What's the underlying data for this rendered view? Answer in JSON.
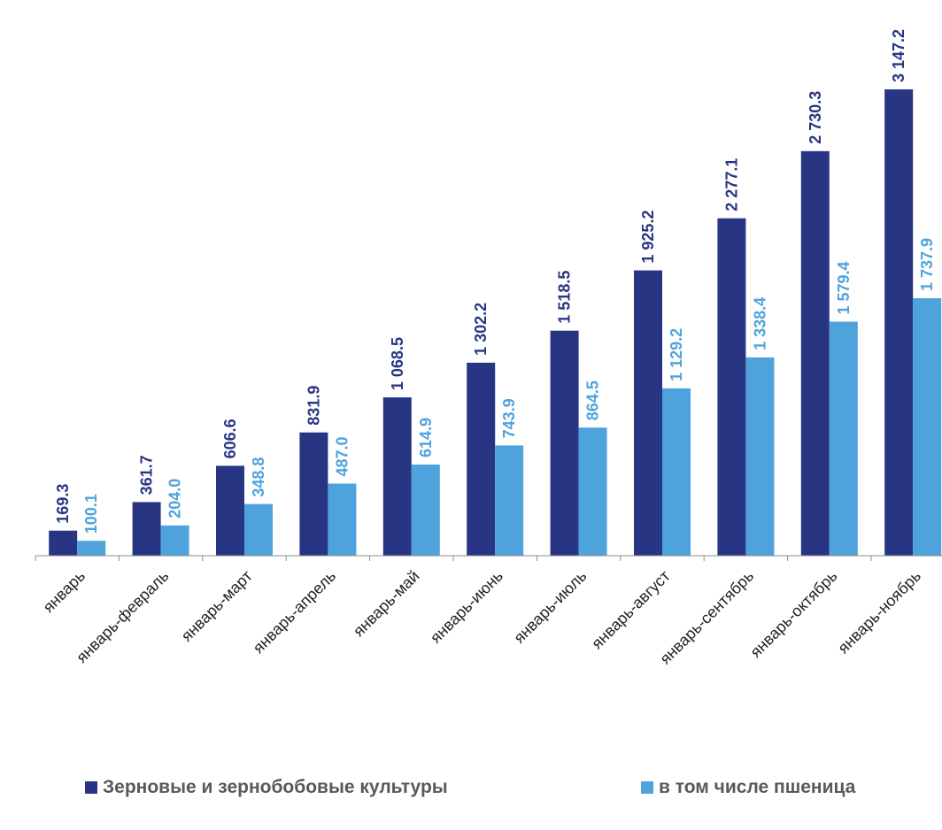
{
  "chart_data": {
    "type": "bar",
    "title": "",
    "xlabel": "",
    "ylabel": "",
    "ylim": [
      0,
      3150
    ],
    "grid": false,
    "legend_position": "bottom",
    "categories": [
      "январь",
      "январь-февраль",
      "январь-март",
      "январь-апрель",
      "январь-май",
      "январь-июнь",
      "январь-июль",
      "январь-август",
      "январь-сентябрь",
      "январь-октябрь",
      "январь-ноябрь"
    ],
    "series": [
      {
        "name": "Зерновые и зернобобовые культуры",
        "color": "#283583",
        "values": [
          169.3,
          361.7,
          606.6,
          831.9,
          1068.5,
          1302.2,
          1518.5,
          1925.2,
          2277.1,
          2730.3,
          3147.2
        ],
        "labels": [
          "169.3",
          "361.7",
          "606.6",
          "831.9",
          "1 068.5",
          "1 302.2",
          "1 518.5",
          "1 925.2",
          "2 277.1",
          "2 730.3",
          "3 147.2"
        ]
      },
      {
        "name": "в том числе пшеница",
        "color": "#4fa3dc",
        "values": [
          100.1,
          204.0,
          348.8,
          487.0,
          614.9,
          743.9,
          864.5,
          1129.2,
          1338.4,
          1579.4,
          1737.9
        ],
        "labels": [
          "100.1",
          "204.0",
          "348.8",
          "487.0",
          "614.9",
          "743.9",
          "864.5",
          "1 129.2",
          "1 338.4",
          "1 579.4",
          "1 737.9"
        ]
      }
    ]
  }
}
